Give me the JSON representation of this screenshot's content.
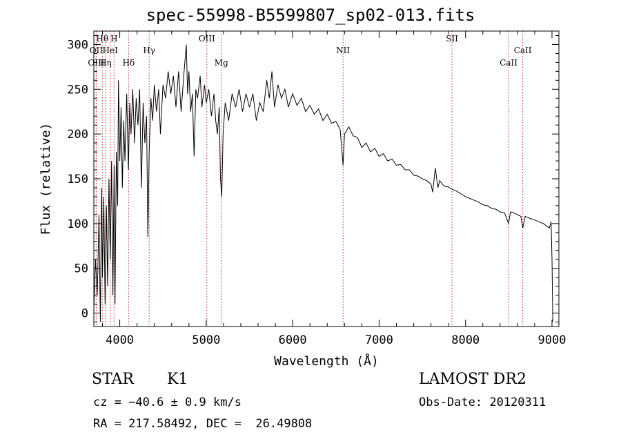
{
  "title": "spec-55998-B5599807_sp02-013.fits",
  "info": {
    "obj_class": "STAR",
    "obj_subclass": "K1",
    "survey": "LAMOST DR2",
    "cz": "cz = −40.6 ± 0.9 km/s",
    "obs_date": "Obs-Date: 20120311",
    "radec": "RA = 217.58492, DEC =  26.49808"
  },
  "chart_data": {
    "type": "line",
    "title": "spec-55998-B5599807_sp02-013.fits",
    "xlabel": "Wavelength (Å)",
    "ylabel": "Flux (relative)",
    "xlim": [
      3700,
      9080
    ],
    "ylim": [
      -15,
      315
    ],
    "x_ticks": [
      4000,
      5000,
      6000,
      7000,
      8000,
      9000
    ],
    "y_ticks": [
      0,
      50,
      100,
      150,
      200,
      250,
      300
    ],
    "line_color": "#000000",
    "marker_color": "#cc2222",
    "lines": [
      {
        "label": "Hθ",
        "wl": 3798,
        "row": 0
      },
      {
        "label": "OII",
        "wl": 3727,
        "row": 1
      },
      {
        "label": "OIII",
        "wl": 3727,
        "row": 2
      },
      {
        "label": "Hη",
        "wl": 3835,
        "row": 2
      },
      {
        "label": "H",
        "wl": 3934,
        "row": 0
      },
      {
        "label": "HeI",
        "wl": 3889,
        "row": 1
      },
      {
        "label": "Hδ",
        "wl": 4102,
        "row": 2
      },
      {
        "label": "Hγ",
        "wl": 4340,
        "row": 1
      },
      {
        "label": "OIII",
        "wl": 5007,
        "row": 0
      },
      {
        "label": "Mg",
        "wl": 5175,
        "row": 2
      },
      {
        "label": "NII",
        "wl": 6583,
        "row": 1
      },
      {
        "label": "SII",
        "wl": 7843,
        "row": 0
      },
      {
        "label": "CaII",
        "wl": 8662,
        "row": 1
      },
      {
        "label": "CaII",
        "wl": 8498,
        "row": 2
      }
    ],
    "spectrum": [
      [
        3700,
        5
      ],
      [
        3720,
        60
      ],
      [
        3740,
        20
      ],
      [
        3760,
        110
      ],
      [
        3775,
        -10
      ],
      [
        3790,
        140
      ],
      [
        3800,
        40
      ],
      [
        3815,
        130
      ],
      [
        3830,
        10
      ],
      [
        3845,
        120
      ],
      [
        3860,
        30
      ],
      [
        3875,
        150
      ],
      [
        3890,
        60
      ],
      [
        3905,
        170
      ],
      [
        3920,
        20
      ],
      [
        3935,
        165
      ],
      [
        3945,
        10
      ],
      [
        3960,
        180
      ],
      [
        3975,
        120
      ],
      [
        3985,
        260
      ],
      [
        4000,
        170
      ],
      [
        4015,
        230
      ],
      [
        4030,
        140
      ],
      [
        4045,
        215
      ],
      [
        4060,
        170
      ],
      [
        4080,
        245
      ],
      [
        4100,
        160
      ],
      [
        4115,
        235
      ],
      [
        4130,
        200
      ],
      [
        4150,
        250
      ],
      [
        4170,
        190
      ],
      [
        4190,
        240
      ],
      [
        4210,
        210
      ],
      [
        4230,
        250
      ],
      [
        4250,
        140
      ],
      [
        4270,
        235
      ],
      [
        4290,
        190
      ],
      [
        4310,
        220
      ],
      [
        4325,
        85
      ],
      [
        4340,
        180
      ],
      [
        4360,
        240
      ],
      [
        4380,
        215
      ],
      [
        4400,
        255
      ],
      [
        4425,
        225
      ],
      [
        4450,
        250
      ],
      [
        4470,
        200
      ],
      [
        4500,
        255
      ],
      [
        4530,
        240
      ],
      [
        4560,
        270
      ],
      [
        4590,
        245
      ],
      [
        4620,
        265
      ],
      [
        4650,
        230
      ],
      [
        4680,
        270
      ],
      [
        4710,
        225
      ],
      [
        4740,
        265
      ],
      [
        4770,
        300
      ],
      [
        4785,
        245
      ],
      [
        4800,
        270
      ],
      [
        4820,
        225
      ],
      [
        4840,
        245
      ],
      [
        4860,
        175
      ],
      [
        4880,
        250
      ],
      [
        4900,
        240
      ],
      [
        4930,
        265
      ],
      [
        4950,
        230
      ],
      [
        4980,
        255
      ],
      [
        5000,
        235
      ],
      [
        5030,
        250
      ],
      [
        5060,
        220
      ],
      [
        5090,
        245
      ],
      [
        5110,
        215
      ],
      [
        5130,
        200
      ],
      [
        5150,
        230
      ],
      [
        5165,
        150
      ],
      [
        5180,
        130
      ],
      [
        5195,
        200
      ],
      [
        5220,
        235
      ],
      [
        5260,
        215
      ],
      [
        5300,
        245
      ],
      [
        5340,
        230
      ],
      [
        5380,
        250
      ],
      [
        5420,
        225
      ],
      [
        5460,
        245
      ],
      [
        5500,
        230
      ],
      [
        5540,
        245
      ],
      [
        5580,
        215
      ],
      [
        5620,
        235
      ],
      [
        5660,
        225
      ],
      [
        5700,
        260
      ],
      [
        5730,
        240
      ],
      [
        5760,
        270
      ],
      [
        5790,
        230
      ],
      [
        5830,
        255
      ],
      [
        5870,
        240
      ],
      [
        5910,
        250
      ],
      [
        5950,
        230
      ],
      [
        6000,
        245
      ],
      [
        6050,
        232
      ],
      [
        6100,
        240
      ],
      [
        6150,
        225
      ],
      [
        6200,
        232
      ],
      [
        6250,
        222
      ],
      [
        6300,
        228
      ],
      [
        6350,
        215
      ],
      [
        6400,
        222
      ],
      [
        6450,
        212
      ],
      [
        6500,
        214
      ],
      [
        6550,
        205
      ],
      [
        6583,
        165
      ],
      [
        6600,
        200
      ],
      [
        6650,
        208
      ],
      [
        6700,
        198
      ],
      [
        6750,
        196
      ],
      [
        6800,
        185
      ],
      [
        6850,
        190
      ],
      [
        6900,
        180
      ],
      [
        6950,
        184
      ],
      [
        7000,
        175
      ],
      [
        7050,
        178
      ],
      [
        7100,
        170
      ],
      [
        7150,
        172
      ],
      [
        7200,
        165
      ],
      [
        7250,
        166
      ],
      [
        7300,
        160
      ],
      [
        7350,
        160
      ],
      [
        7400,
        154
      ],
      [
        7450,
        153
      ],
      [
        7500,
        150
      ],
      [
        7550,
        148
      ],
      [
        7600,
        144
      ],
      [
        7620,
        135
      ],
      [
        7650,
        162
      ],
      [
        7680,
        140
      ],
      [
        7700,
        148
      ],
      [
        7750,
        142
      ],
      [
        7800,
        141
      ],
      [
        7850,
        138
      ],
      [
        7900,
        136
      ],
      [
        7950,
        133
      ],
      [
        8000,
        130
      ],
      [
        8050,
        128
      ],
      [
        8100,
        126
      ],
      [
        8150,
        124
      ],
      [
        8200,
        121
      ],
      [
        8250,
        120
      ],
      [
        8300,
        117
      ],
      [
        8350,
        116
      ],
      [
        8400,
        113
      ],
      [
        8450,
        112
      ],
      [
        8498,
        100
      ],
      [
        8520,
        113
      ],
      [
        8560,
        112
      ],
      [
        8600,
        110
      ],
      [
        8640,
        108
      ],
      [
        8662,
        95
      ],
      [
        8690,
        108
      ],
      [
        8740,
        106
      ],
      [
        8800,
        104
      ],
      [
        8850,
        102
      ],
      [
        8900,
        100
      ],
      [
        8940,
        97
      ],
      [
        8970,
        95
      ],
      [
        8990,
        102
      ],
      [
        9000,
        60
      ],
      [
        9010,
        -10
      ]
    ]
  }
}
